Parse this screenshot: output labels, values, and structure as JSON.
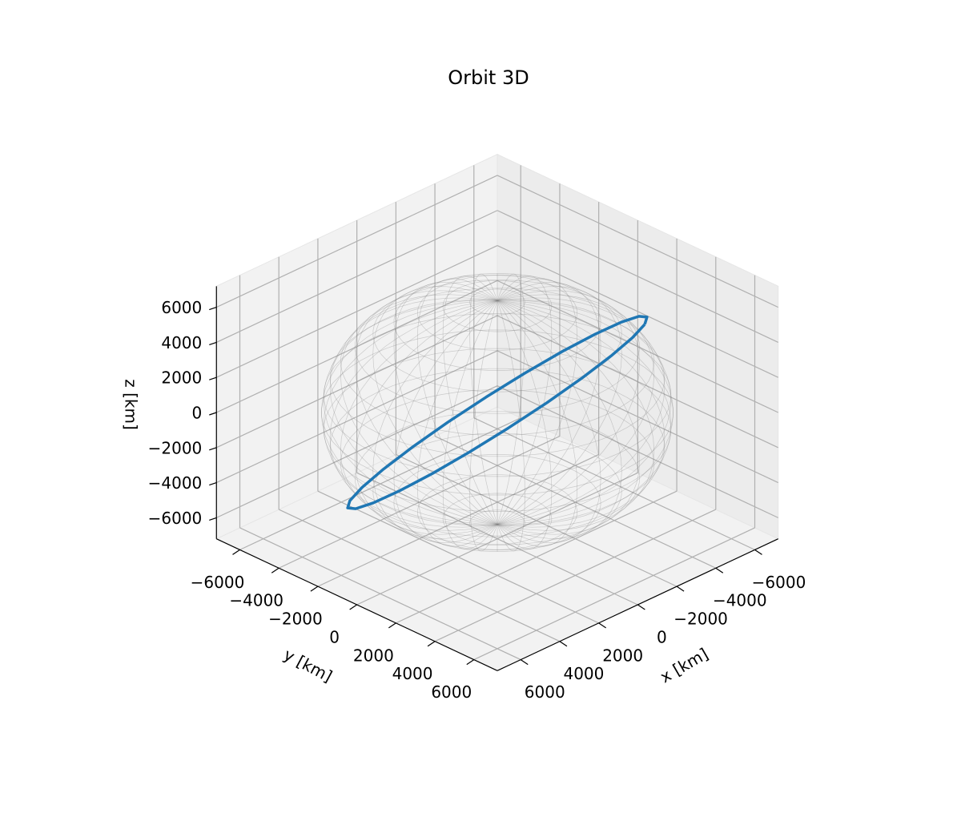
{
  "chart_data": {
    "type": "line3d",
    "title": "Orbit 3D",
    "xlabel": "x [km]",
    "ylabel": "y [km]",
    "zlabel": "z [km]",
    "xlim": [
      -7200,
      7200
    ],
    "ylim": [
      -7200,
      7200
    ],
    "zlim": [
      -7200,
      7200
    ],
    "xticks": [
      {
        "value": -6000,
        "label": "−6000"
      },
      {
        "value": -4000,
        "label": "−4000"
      },
      {
        "value": -2000,
        "label": "−2000"
      },
      0,
      2000,
      4000,
      6000
    ],
    "yticks": [
      {
        "value": -6000,
        "label": "−6000"
      },
      {
        "value": -4000,
        "label": "−4000"
      },
      {
        "value": -2000,
        "label": "−2000"
      },
      0,
      2000,
      4000,
      6000
    ],
    "zticks": [
      {
        "value": -6000,
        "label": "−6000"
      },
      {
        "value": -4000,
        "label": "−4000"
      },
      {
        "value": -2000,
        "label": "−2000"
      },
      0,
      2000,
      4000,
      6000
    ],
    "grid": true,
    "sphere": {
      "radius": 6378,
      "color": "#808080"
    },
    "series": [
      {
        "color": "#1f77b4",
        "x": [
          -4390,
          -2876,
          -1167,
          622,
          2369,
          3954,
          5270,
          6228,
          6759,
          6830,
          6437,
          5606,
          4390,
          2876,
          1167,
          -622,
          -2369,
          -3954,
          -5270,
          -6228,
          -6759,
          -6830,
          -6437,
          -5606,
          -4390
        ],
        "y": [
          3170,
          4057,
          4665,
          4956,
          4910,
          4530,
          3840,
          2888,
          1740,
          474,
          -825,
          -2067,
          -3170,
          -4057,
          -4665,
          -4956,
          -4910,
          -4530,
          -3840,
          -2888,
          -1740,
          -474,
          825,
          2067,
          3170
        ],
        "z": [
          4390,
          4889,
          5052,
          4872,
          4360,
          3552,
          2500,
          1278,
          -30,
          -1336,
          -2552,
          -3593,
          -4390,
          -4889,
          -5052,
          -4872,
          -4360,
          -3552,
          -2500,
          -1278,
          30,
          1336,
          2552,
          3593,
          4390
        ]
      }
    ]
  }
}
